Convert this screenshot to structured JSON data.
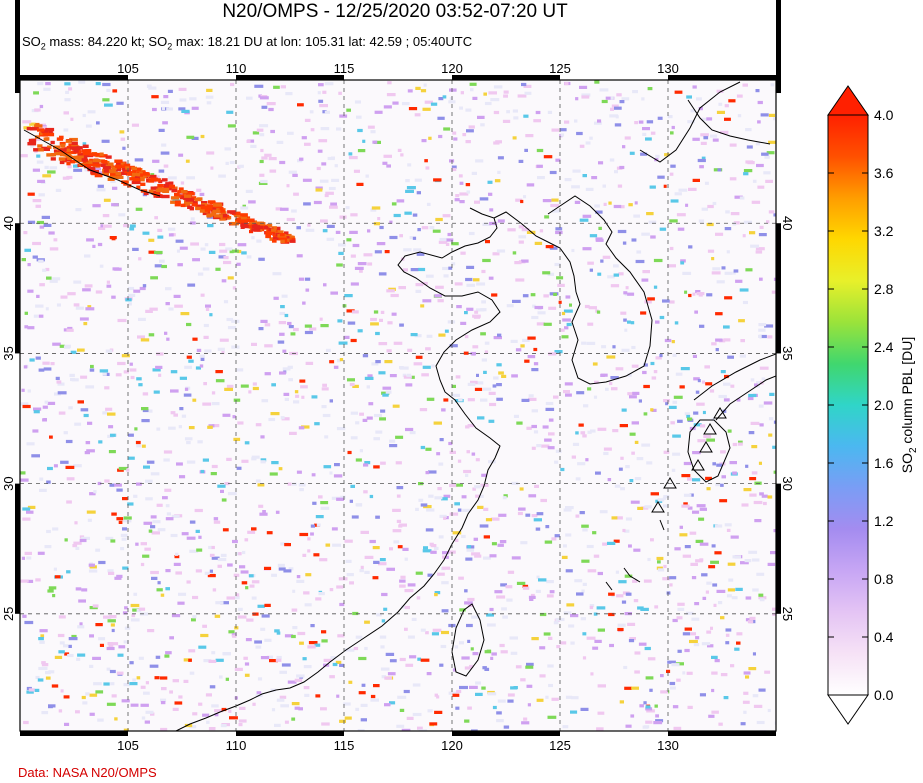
{
  "header": {
    "title": "N20/OMPS - 12/25/2020 03:52-07:20 UT",
    "subtitle_parts": [
      "SO",
      "2",
      " mass: 84.220 kt; SO",
      "2",
      " max: 18.21 DU at lon: 105.31 lat: 42.59 ; 05:40UTC"
    ]
  },
  "credit": "Data: NASA N20/OMPS",
  "map": {
    "lon_range": [
      100,
      135
    ],
    "lat_range": [
      20.5,
      45.5
    ],
    "lon_ticks": [
      "105",
      "110",
      "115",
      "120",
      "125",
      "130"
    ],
    "lat_ticks": [
      "40",
      "35",
      "30",
      "25"
    ],
    "plume_colors": [
      "#e8251c",
      "#ff3b00",
      "#f26a10"
    ],
    "noise_colors": [
      "#ff2a00",
      "#f5d23c",
      "#7ed957",
      "#59c8e8",
      "#8f8fe8",
      "#cfa0f0",
      "#f0c8f0",
      "#e8e8f8"
    ]
  },
  "colorbar": {
    "labels": [
      "4.0",
      "3.6",
      "3.2",
      "2.8",
      "2.4",
      "2.0",
      "1.6",
      "1.2",
      "0.8",
      "0.4",
      "0.0"
    ],
    "title_parts": [
      "SO",
      "2",
      " column PBL [DU]"
    ],
    "colors": [
      "#ff2000",
      "#ff5000",
      "#ff9d00",
      "#ffd700",
      "#e8f02a",
      "#9be33a",
      "#40d76e",
      "#30d5c8",
      "#4bb8f0",
      "#7a9df5",
      "#a48cf0",
      "#c7a6f4",
      "#e4c4f4",
      "#f6e2f6",
      "#ffffff"
    ]
  }
}
